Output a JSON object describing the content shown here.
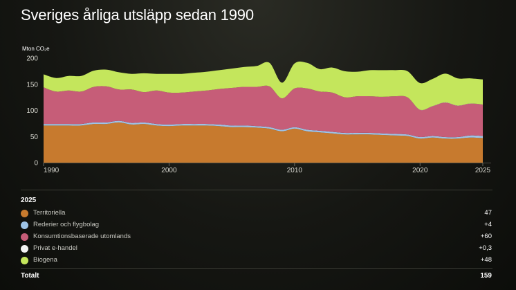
{
  "title": "Sveriges årliga utsläpp sedan 1990",
  "legend": {
    "year": "2025",
    "items": [
      {
        "name": "Territoriella",
        "value": "47",
        "color": "#c77a2e"
      },
      {
        "name": "Rederier och flygbolag",
        "value": "+4",
        "color": "#9ec3e6"
      },
      {
        "name": "Konsumtionsbaserade utomlands",
        "value": "+60",
        "color": "#c65d78"
      },
      {
        "name": "Privat e-handel",
        "value": "+0,3",
        "color": "#f4f4f4"
      },
      {
        "name": "Biogena",
        "value": "+48",
        "color": "#c4e65c"
      }
    ],
    "total_label": "Totalt",
    "total_value": "159"
  },
  "chart_data": {
    "type": "area",
    "stacked": true,
    "ylabel": "Mton CO₂e",
    "ylim": [
      0,
      200
    ],
    "yticks": [
      0,
      50,
      100,
      150,
      200
    ],
    "xlim": [
      1990,
      2025
    ],
    "xticks": [
      1990,
      2000,
      2010,
      2020,
      2025
    ],
    "grid": false,
    "x": [
      1990,
      1991,
      1992,
      1993,
      1994,
      1995,
      1996,
      1997,
      1998,
      1999,
      2000,
      2001,
      2002,
      2003,
      2004,
      2005,
      2006,
      2007,
      2008,
      2009,
      2010,
      2011,
      2012,
      2013,
      2014,
      2015,
      2016,
      2017,
      2018,
      2019,
      2020,
      2021,
      2022,
      2023,
      2024,
      2025
    ],
    "series": [
      {
        "name": "Territoriella",
        "color": "#c77a2e",
        "values": [
          71,
          71,
          71,
          71,
          74,
          74,
          77,
          73,
          74,
          71,
          70,
          71,
          71,
          71,
          70,
          68,
          68,
          67,
          65,
          60,
          65,
          60,
          58,
          56,
          54,
          54,
          54,
          53,
          52,
          51,
          46,
          48,
          46,
          46,
          48,
          47
        ]
      },
      {
        "name": "Rederier och flygbolag",
        "color": "#9ec3e6",
        "values": [
          3,
          3,
          3,
          3,
          3,
          3,
          3,
          3,
          3,
          3,
          3,
          3,
          3,
          3,
          3,
          3,
          3,
          3,
          3,
          3,
          3,
          3,
          3,
          3,
          3,
          3,
          3,
          3,
          3,
          3,
          3,
          3,
          3,
          3,
          4,
          4
        ]
      },
      {
        "name": "Konsumtionsbaserade utomlands",
        "color": "#c65d78",
        "values": [
          70,
          62,
          64,
          62,
          68,
          69,
          60,
          64,
          58,
          64,
          61,
          60,
          62,
          64,
          68,
          72,
          74,
          75,
          78,
          60,
          74,
          79,
          75,
          75,
          68,
          70,
          70,
          70,
          72,
          71,
          52,
          57,
          66,
          60,
          61,
          60
        ]
      },
      {
        "name": "Privat e-handel",
        "color": "#f4f4f4",
        "values": [
          0,
          0,
          0,
          0,
          0,
          0,
          0,
          0,
          0,
          0,
          0,
          0,
          0,
          0,
          0,
          0,
          0,
          0,
          0,
          0,
          0,
          0,
          0,
          0,
          0,
          0,
          0,
          0,
          0,
          0,
          0.3,
          0.3,
          0.3,
          0.3,
          0.3,
          0.3
        ]
      },
      {
        "name": "Biogena",
        "color": "#c4e65c",
        "values": [
          25,
          26,
          28,
          30,
          31,
          32,
          33,
          30,
          36,
          32,
          36,
          36,
          36,
          36,
          36,
          37,
          38,
          40,
          45,
          30,
          48,
          49,
          43,
          48,
          50,
          47,
          50,
          51,
          50,
          50,
          51,
          52,
          55,
          52,
          48,
          48
        ]
      }
    ]
  }
}
